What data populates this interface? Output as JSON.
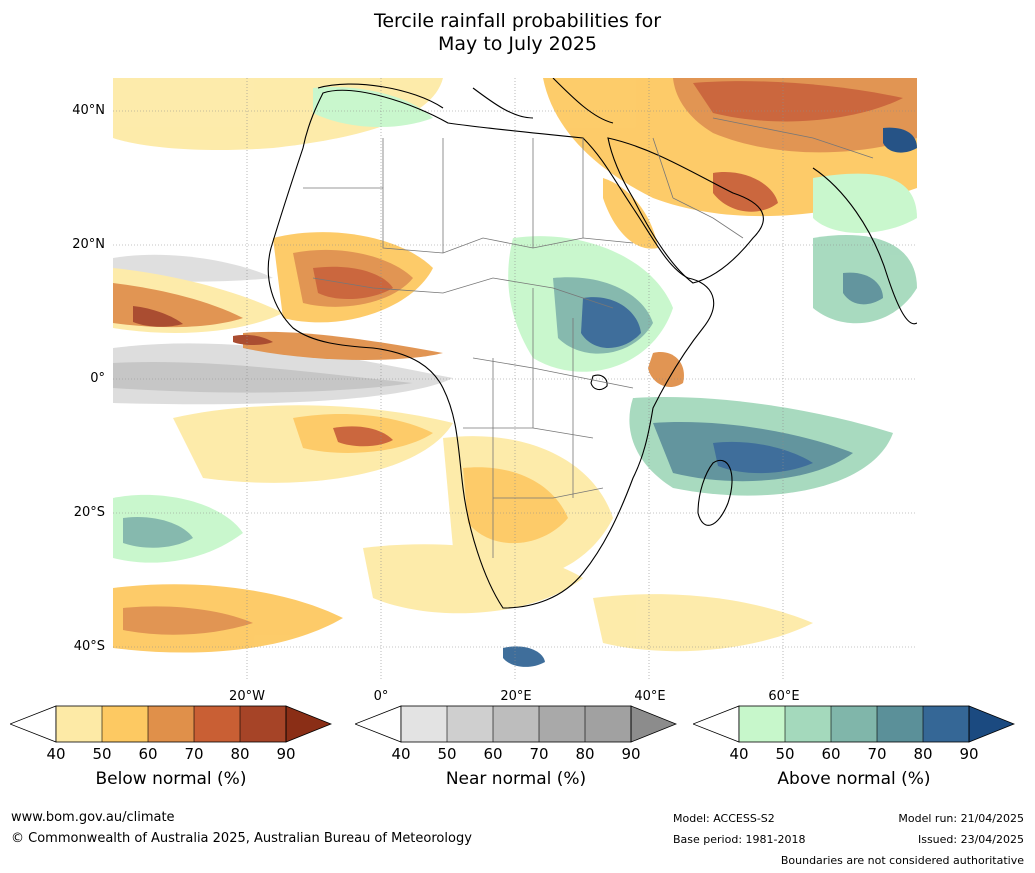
{
  "title_line1": "Tercile rainfall probabilities for",
  "title_line2": "May to July 2025",
  "map": {
    "lat_labels": [
      "40°N",
      "20°N",
      "0°",
      "20°S",
      "40°S"
    ],
    "lon_labels": [
      "20°W",
      "0°",
      "20°E",
      "40°E",
      "60°E"
    ],
    "colors": {
      "below": [
        "#fdeaa6",
        "#fdc962",
        "#e0904a",
        "#c95f34",
        "#a64427",
        "#8a2e16"
      ],
      "near": [
        "#e3e3e3",
        "#cfcfcf",
        "#bdbdbd",
        "#a9a9a9",
        "#8c8c8c"
      ],
      "above": [
        "#c7f7cb",
        "#a4d9bc",
        "#80b6aa",
        "#5b9099",
        "#356796",
        "#1b4a80"
      ]
    }
  },
  "colorbars": {
    "ticks": [
      "40",
      "50",
      "60",
      "70",
      "80",
      "90"
    ],
    "below_label": "Below normal (%)",
    "near_label": "Near normal (%)",
    "above_label": "Above normal (%)"
  },
  "footer": {
    "website": "www.bom.gov.au/climate",
    "copyright": "© Commonwealth of Australia 2025, Australian Bureau of Meteorology",
    "model": "Model: ACCESS-S2",
    "base_period": "Base period: 1981-2018",
    "model_run": "Model run: 21/04/2025",
    "issued": "Issued: 23/04/2025",
    "disclaimer": "Boundaries are not considered authoritative"
  }
}
